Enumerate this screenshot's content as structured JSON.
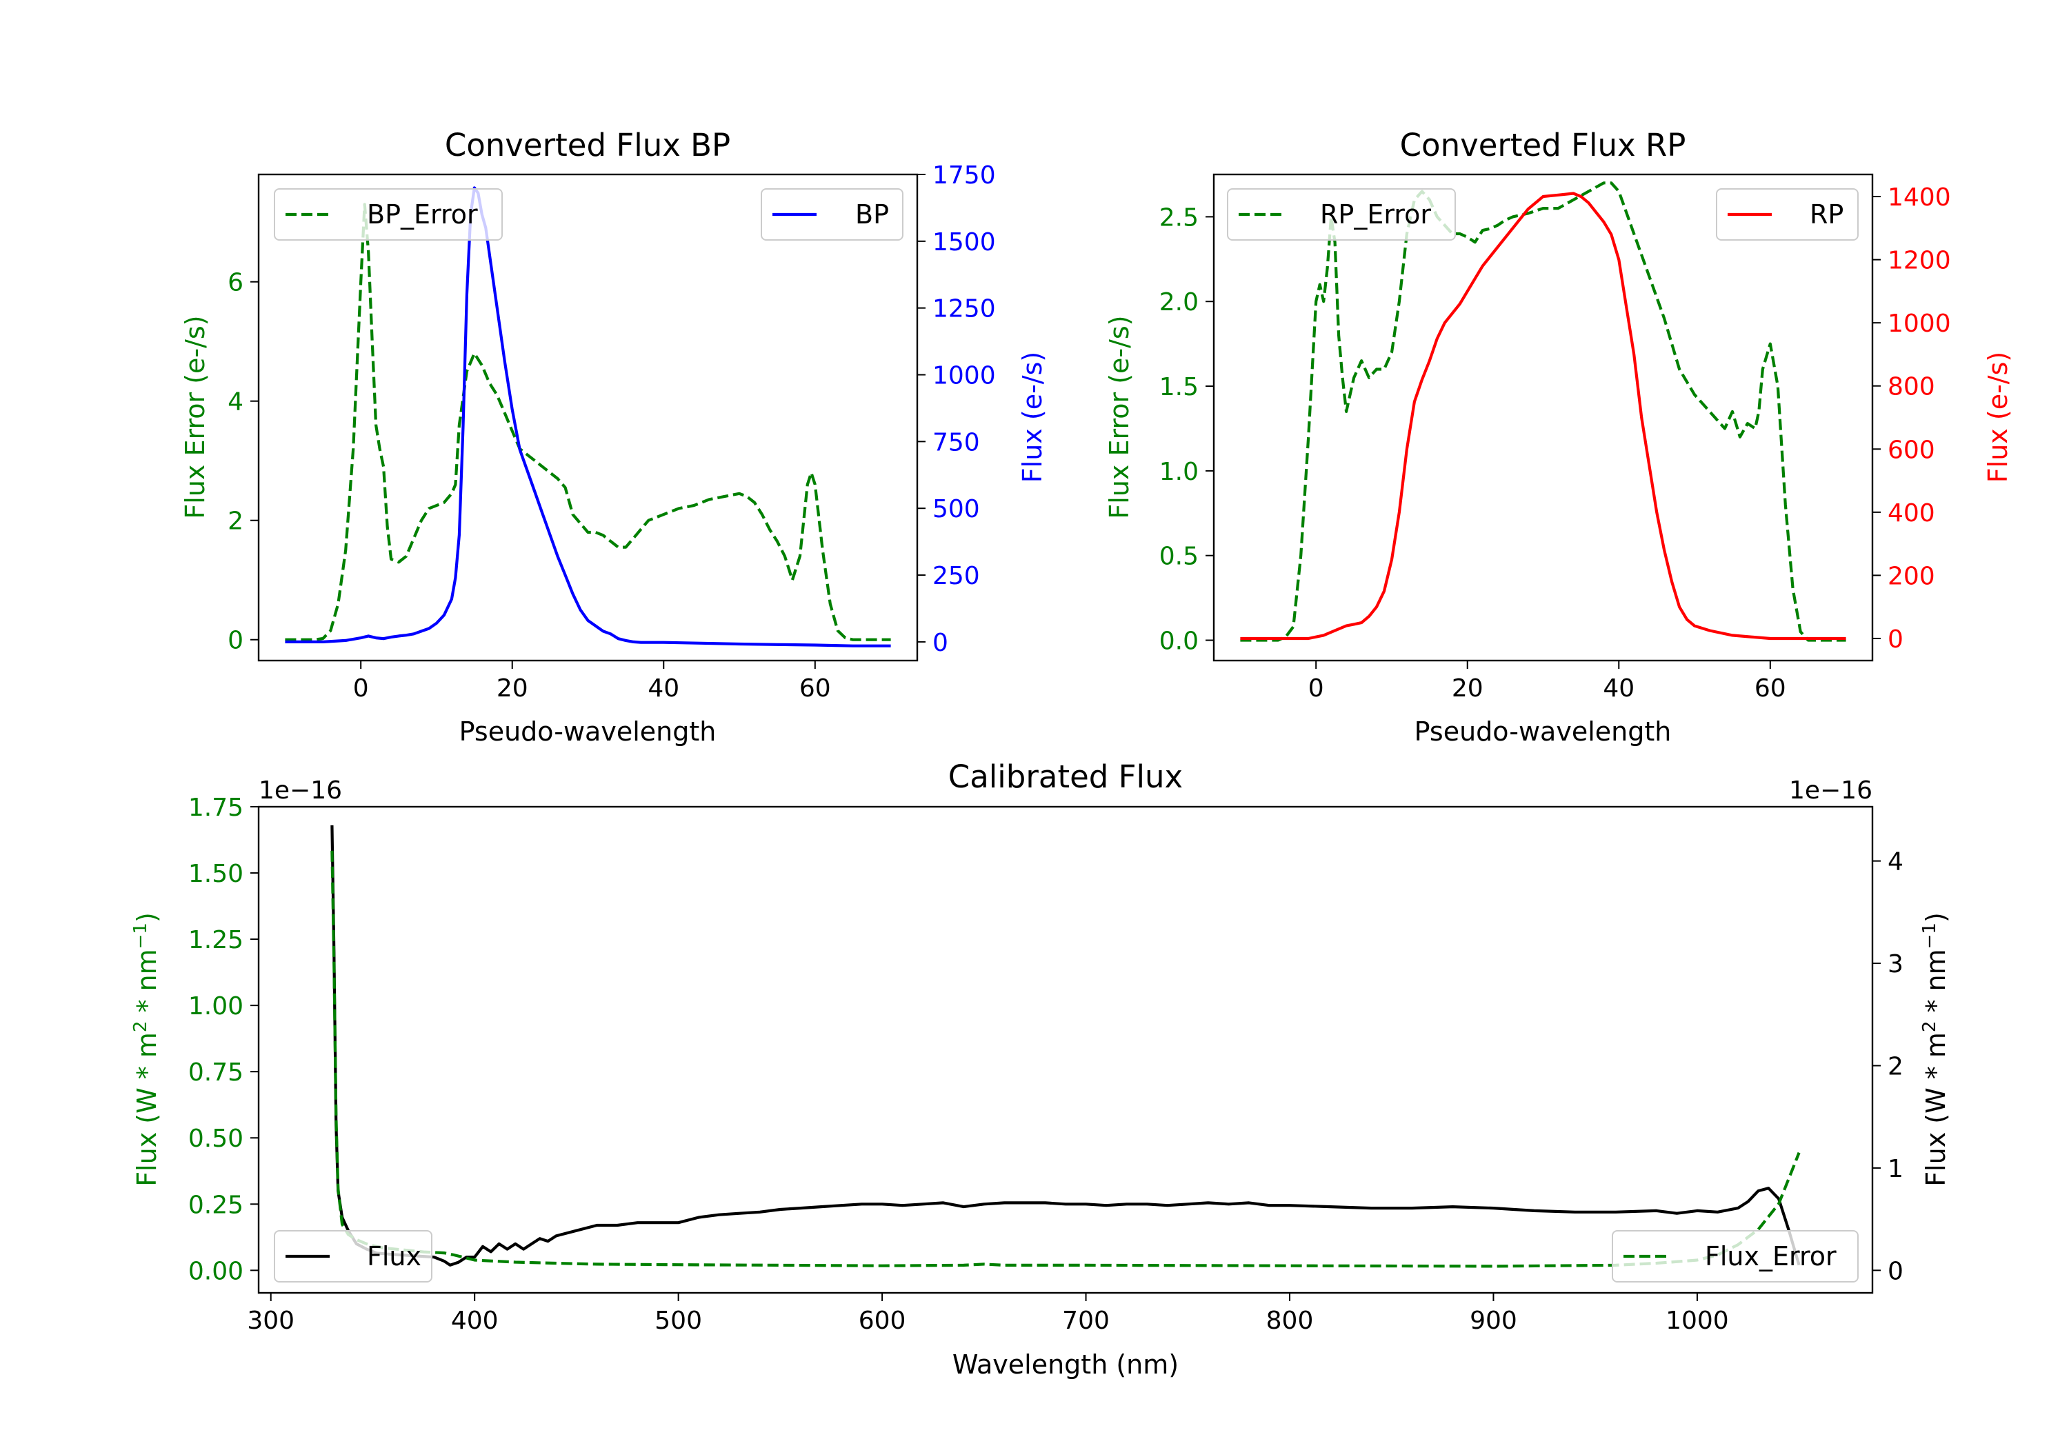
{
  "colors": {
    "green": "#008000",
    "blue": "#0000ff",
    "red": "#ff0000",
    "black": "#000000"
  },
  "chart_data": [
    {
      "id": "bp",
      "type": "line",
      "title": "Converted Flux BP",
      "xlabel": "Pseudo-wavelength",
      "ylabel_left": "Flux Error (e-/s)",
      "ylabel_right": "Flux (e-/s)",
      "xlim": [
        -13.5,
        73.5
      ],
      "ylim_left": [
        -0.35,
        7.8
      ],
      "ylim_right": [
        -70,
        1750
      ],
      "xticks": [
        0,
        20,
        40,
        60
      ],
      "xtick_labels": [
        "0",
        "20",
        "40",
        "60"
      ],
      "yticks_left": [
        0,
        2,
        4,
        6
      ],
      "ytick_labels_left": [
        "0",
        "2",
        "4",
        "6"
      ],
      "yticks_right": [
        0,
        250,
        500,
        750,
        1000,
        1250,
        1500,
        1750
      ],
      "ytick_labels_right": [
        "0",
        "250",
        "500",
        "750",
        "1000",
        "1250",
        "1500",
        "1750"
      ],
      "series": [
        {
          "name": "BP_Error",
          "axis": "left",
          "color": "#008000",
          "dashed": true,
          "legend": "upper left",
          "x": [
            -10,
            -6,
            -5,
            -4,
            -3,
            -2,
            -1,
            0,
            0.5,
            1,
            1.5,
            2,
            2.5,
            3,
            3.5,
            4,
            5,
            6,
            7,
            8,
            9,
            10,
            11,
            12,
            12.5,
            13,
            14,
            15,
            16,
            17,
            18,
            19,
            20,
            21,
            22,
            23,
            24,
            25,
            26,
            27,
            28,
            29,
            30,
            31,
            32,
            33,
            34,
            35,
            36,
            37,
            38,
            39,
            40,
            42,
            44,
            46,
            48,
            50,
            51,
            52,
            53,
            54,
            55,
            56,
            57,
            58,
            59,
            59.5,
            60,
            61,
            62,
            63,
            64,
            65,
            66,
            67,
            68,
            69,
            70
          ],
          "y": [
            0,
            0,
            0.02,
            0.15,
            0.6,
            1.5,
            3.2,
            6.0,
            7.3,
            6.5,
            5.0,
            3.6,
            3.2,
            2.9,
            1.9,
            1.35,
            1.3,
            1.4,
            1.7,
            2.0,
            2.2,
            2.25,
            2.3,
            2.45,
            2.6,
            3.6,
            4.5,
            4.8,
            4.6,
            4.3,
            4.1,
            3.8,
            3.5,
            3.2,
            3.1,
            3.0,
            2.9,
            2.8,
            2.7,
            2.55,
            2.1,
            1.95,
            1.8,
            1.8,
            1.75,
            1.65,
            1.55,
            1.55,
            1.7,
            1.85,
            2.0,
            2.05,
            2.1,
            2.2,
            2.25,
            2.35,
            2.4,
            2.45,
            2.4,
            2.3,
            2.1,
            1.85,
            1.65,
            1.4,
            1.0,
            1.4,
            2.6,
            2.8,
            2.6,
            1.5,
            0.6,
            0.15,
            0.03,
            0,
            0,
            0,
            0,
            0,
            0
          ]
        },
        {
          "name": "BP",
          "axis": "right",
          "color": "#0000ff",
          "dashed": false,
          "legend": "upper right",
          "x": [
            -10,
            -5,
            -2,
            0,
            1,
            2,
            3,
            4,
            5,
            6,
            7,
            8,
            9,
            10,
            11,
            12,
            12.5,
            13,
            13.5,
            14,
            14.5,
            15,
            15.5,
            16,
            16.5,
            17,
            18,
            19,
            20,
            21,
            22,
            23,
            24,
            25,
            26,
            27,
            28,
            29,
            30,
            31,
            32,
            33,
            34,
            35,
            36,
            37,
            38,
            40,
            45,
            50,
            55,
            60,
            65,
            70
          ],
          "y": [
            0,
            0,
            5,
            15,
            22,
            15,
            12,
            18,
            22,
            25,
            30,
            40,
            50,
            70,
            100,
            160,
            240,
            400,
            800,
            1300,
            1600,
            1700,
            1680,
            1600,
            1550,
            1450,
            1250,
            1050,
            870,
            720,
            640,
            560,
            480,
            400,
            320,
            250,
            180,
            120,
            80,
            60,
            40,
            30,
            12,
            5,
            0,
            -2,
            -2,
            -2,
            -5,
            -8,
            -10,
            -12,
            -15,
            -15
          ]
        }
      ]
    },
    {
      "id": "rp",
      "type": "line",
      "title": "Converted Flux RP",
      "xlabel": "Pseudo-wavelength",
      "ylabel_left": "Flux Error (e-/s)",
      "ylabel_right": "Flux (e-/s)",
      "xlim": [
        -13.5,
        73.5
      ],
      "ylim_left": [
        -0.12,
        2.75
      ],
      "ylim_right": [
        -70,
        1470
      ],
      "xticks": [
        0,
        20,
        40,
        60
      ],
      "xtick_labels": [
        "0",
        "20",
        "40",
        "60"
      ],
      "yticks_left": [
        0,
        0.5,
        1.0,
        1.5,
        2.0,
        2.5
      ],
      "ytick_labels_left": [
        "0.0",
        "0.5",
        "1.0",
        "1.5",
        "2.0",
        "2.5"
      ],
      "yticks_right": [
        0,
        200,
        400,
        600,
        800,
        1000,
        1200,
        1400
      ],
      "ytick_labels_right": [
        "0",
        "200",
        "400",
        "600",
        "800",
        "1000",
        "1200",
        "1400"
      ],
      "series": [
        {
          "name": "RP_Error",
          "axis": "left",
          "color": "#008000",
          "dashed": true,
          "legend": "upper left",
          "x": [
            -10,
            -5,
            -4,
            -3,
            -2,
            -1,
            0,
            0.5,
            1,
            1.5,
            2,
            2.5,
            3,
            3.5,
            4,
            5,
            6,
            7,
            8,
            9,
            10,
            11,
            12,
            13,
            14,
            15,
            16,
            17,
            18,
            19,
            20,
            21,
            22,
            23,
            24,
            25,
            26,
            28,
            30,
            32,
            34,
            36,
            38,
            39,
            40,
            42,
            44,
            46,
            48,
            50,
            52,
            54,
            55,
            56,
            57,
            58,
            58.5,
            59,
            60,
            61,
            62,
            63,
            64,
            65,
            66,
            70
          ],
          "y": [
            0,
            0,
            0.02,
            0.08,
            0.5,
            1.2,
            2.0,
            2.1,
            2.0,
            2.2,
            2.5,
            2.35,
            1.8,
            1.55,
            1.35,
            1.55,
            1.65,
            1.55,
            1.6,
            1.6,
            1.7,
            2.0,
            2.4,
            2.6,
            2.65,
            2.6,
            2.5,
            2.45,
            2.4,
            2.4,
            2.38,
            2.35,
            2.42,
            2.43,
            2.45,
            2.48,
            2.5,
            2.52,
            2.55,
            2.55,
            2.6,
            2.65,
            2.7,
            2.7,
            2.65,
            2.4,
            2.15,
            1.9,
            1.6,
            1.45,
            1.35,
            1.25,
            1.35,
            1.2,
            1.28,
            1.25,
            1.35,
            1.6,
            1.75,
            1.5,
            0.8,
            0.3,
            0.05,
            0,
            0,
            0
          ]
        },
        {
          "name": "RP",
          "axis": "right",
          "color": "#ff0000",
          "dashed": false,
          "legend": "upper right",
          "x": [
            -10,
            -5,
            -3,
            -1,
            0,
            1,
            2,
            3,
            4,
            5,
            6,
            7,
            8,
            9,
            10,
            11,
            12,
            13,
            14,
            15,
            16,
            17,
            18,
            19,
            20,
            22,
            24,
            26,
            28,
            30,
            32,
            34,
            35,
            36,
            37,
            38,
            39,
            40,
            41,
            42,
            43,
            44,
            45,
            46,
            47,
            48,
            49,
            50,
            52,
            55,
            60,
            65,
            70
          ],
          "y": [
            0,
            0,
            0,
            0,
            5,
            10,
            20,
            30,
            40,
            45,
            50,
            70,
            100,
            150,
            250,
            400,
            600,
            750,
            820,
            880,
            950,
            1000,
            1030,
            1060,
            1100,
            1180,
            1240,
            1300,
            1360,
            1400,
            1405,
            1410,
            1400,
            1380,
            1350,
            1320,
            1280,
            1200,
            1050,
            900,
            700,
            550,
            400,
            280,
            180,
            100,
            60,
            40,
            25,
            10,
            0,
            0,
            0
          ]
        }
      ]
    },
    {
      "id": "cal",
      "type": "line",
      "title": "Calibrated Flux",
      "xlabel": "Wavelength (nm)",
      "ylabel_left_pre": "Flux (W * m",
      "ylabel_left_mid": " * nm",
      "ylabel_left_post": ")",
      "ylabel_right_pre": "Flux (W * m",
      "ylabel_right_mid": " * nm",
      "ylabel_right_post": ")",
      "sup_2": "2",
      "sup_m1": "−1",
      "offset_left": "1e−16",
      "offset_right": "1e−16",
      "xlim": [
        294,
        1086
      ],
      "ylim_left": [
        -0.085,
        1.75
      ],
      "ylim_right": [
        -0.22,
        4.53
      ],
      "xticks": [
        300,
        400,
        500,
        600,
        700,
        800,
        900,
        1000
      ],
      "xtick_labels": [
        "300",
        "400",
        "500",
        "600",
        "700",
        "800",
        "900",
        "1000"
      ],
      "yticks_left": [
        0,
        0.25,
        0.5,
        0.75,
        1.0,
        1.25,
        1.5,
        1.75
      ],
      "ytick_labels_left": [
        "0.00",
        "0.25",
        "0.50",
        "0.75",
        "1.00",
        "1.25",
        "1.50",
        "1.75"
      ],
      "yticks_right": [
        0,
        1,
        2,
        3,
        4
      ],
      "ytick_labels_right": [
        "0",
        "1",
        "2",
        "3",
        "4"
      ],
      "series": [
        {
          "name": "Flux",
          "axis": "left",
          "color": "#000000",
          "dashed": false,
          "legend": "lower left",
          "x": [
            330,
            331,
            332,
            333,
            335,
            338,
            342,
            347,
            352,
            360,
            370,
            380,
            385,
            388,
            392,
            396,
            400,
            404,
            408,
            412,
            416,
            420,
            424,
            428,
            432,
            436,
            440,
            450,
            460,
            470,
            480,
            490,
            500,
            510,
            520,
            530,
            540,
            550,
            560,
            570,
            580,
            590,
            600,
            610,
            620,
            630,
            640,
            650,
            660,
            670,
            680,
            690,
            700,
            710,
            720,
            730,
            740,
            750,
            760,
            770,
            780,
            790,
            800,
            820,
            840,
            860,
            880,
            900,
            920,
            940,
            960,
            980,
            990,
            1000,
            1010,
            1020,
            1025,
            1030,
            1035,
            1040,
            1045,
            1050
          ],
          "y": [
            1.68,
            1.2,
            0.55,
            0.3,
            0.2,
            0.15,
            0.1,
            0.08,
            0.065,
            0.06,
            0.055,
            0.05,
            0.035,
            0.02,
            0.03,
            0.05,
            0.05,
            0.09,
            0.07,
            0.1,
            0.08,
            0.1,
            0.08,
            0.1,
            0.12,
            0.11,
            0.13,
            0.15,
            0.17,
            0.17,
            0.18,
            0.18,
            0.18,
            0.2,
            0.21,
            0.215,
            0.22,
            0.23,
            0.235,
            0.24,
            0.245,
            0.25,
            0.25,
            0.245,
            0.25,
            0.255,
            0.24,
            0.25,
            0.255,
            0.255,
            0.255,
            0.25,
            0.25,
            0.245,
            0.25,
            0.25,
            0.245,
            0.25,
            0.255,
            0.25,
            0.255,
            0.245,
            0.245,
            0.24,
            0.235,
            0.235,
            0.24,
            0.235,
            0.225,
            0.22,
            0.22,
            0.225,
            0.215,
            0.225,
            0.22,
            0.235,
            0.26,
            0.3,
            0.31,
            0.27,
            0.15,
            0.02
          ]
        },
        {
          "name": "Flux_Error",
          "axis": "right",
          "color": "#008000",
          "dashed": true,
          "legend": "lower right",
          "x": [
            330,
            331,
            332,
            333,
            335,
            338,
            342,
            348,
            355,
            365,
            375,
            385,
            390,
            400,
            420,
            440,
            460,
            500,
            550,
            600,
            640,
            650,
            660,
            700,
            800,
            900,
            960,
            980,
            1000,
            1010,
            1020,
            1030,
            1040,
            1045,
            1050
          ],
          "y": [
            4.1,
            3.0,
            1.5,
            0.8,
            0.45,
            0.35,
            0.3,
            0.25,
            0.22,
            0.2,
            0.18,
            0.17,
            0.15,
            0.1,
            0.08,
            0.07,
            0.06,
            0.055,
            0.05,
            0.045,
            0.05,
            0.06,
            0.05,
            0.05,
            0.045,
            0.04,
            0.05,
            0.07,
            0.1,
            0.15,
            0.25,
            0.4,
            0.65,
            0.9,
            1.15
          ]
        }
      ]
    }
  ]
}
